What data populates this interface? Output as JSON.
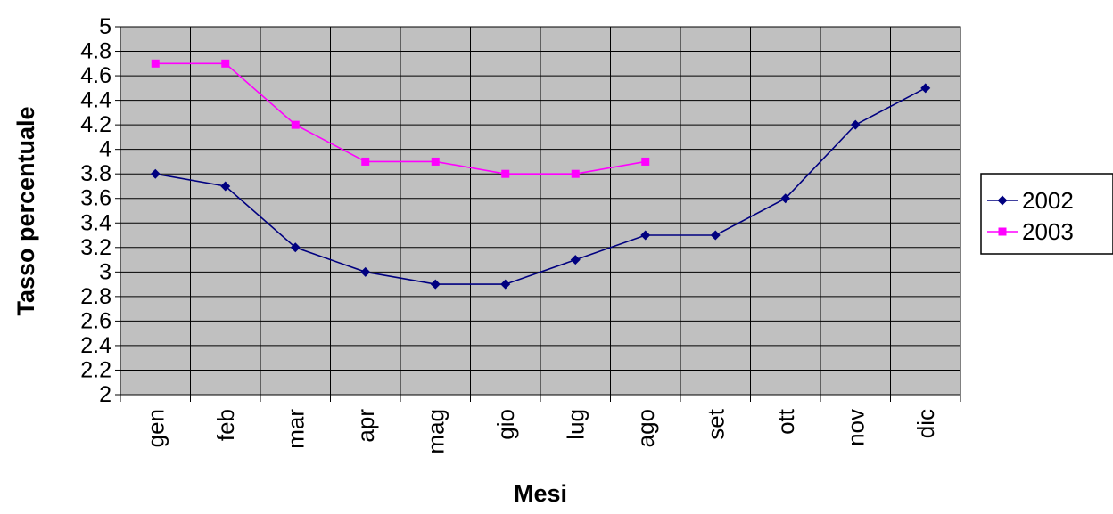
{
  "chart_data": {
    "type": "line",
    "title": "",
    "xlabel": "Mesi",
    "ylabel": "Tasso percentuale",
    "categories": [
      "gen",
      "feb",
      "mar",
      "apr",
      "mag",
      "gio",
      "lug",
      "ago",
      "set",
      "ott",
      "nov",
      "dic"
    ],
    "ylim": [
      2,
      5
    ],
    "yticks": [
      "2",
      "2.2",
      "2.4",
      "2.6",
      "2.8",
      "3",
      "3.2",
      "3.4",
      "3.6",
      "3.8",
      "4",
      "4.2",
      "4.4",
      "4.6",
      "4.8",
      "5"
    ],
    "grid": true,
    "legend_position": "right",
    "plot_background": "#c0c0c0",
    "series": [
      {
        "name": "2002",
        "color": "#000080",
        "marker": "diamond",
        "values": [
          3.8,
          3.7,
          3.2,
          3.0,
          2.9,
          2.9,
          3.1,
          3.3,
          3.3,
          3.6,
          4.2,
          4.5
        ]
      },
      {
        "name": "2003",
        "color": "#ff00ff",
        "marker": "square",
        "values": [
          4.7,
          4.7,
          4.2,
          3.9,
          3.9,
          3.8,
          3.8,
          3.9,
          null,
          null,
          null,
          null
        ]
      }
    ]
  }
}
